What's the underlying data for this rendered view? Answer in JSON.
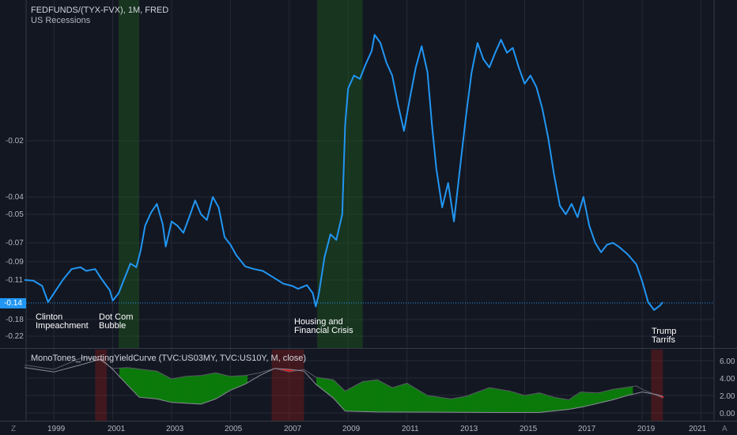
{
  "header": {
    "symbol": "FEDFUNDS/(TYX-FVX), 1M, FRED",
    "indicator": "US Recessions"
  },
  "lower_panel": {
    "title": "MonoTones_InvertingYieldCurve (TVC:US03MY, TVC:US10Y, M, close)"
  },
  "price_badge": "-0.14",
  "y_axis_labels": [
    "-0.02",
    "-0.04",
    "-0.05",
    "-0.07",
    "-0.09",
    "-0.11",
    "-0.18",
    "-0.22"
  ],
  "right_axis_labels": [
    "6.00",
    "4.00",
    "2.00",
    "0.00"
  ],
  "x_axis_labels": [
    "1999",
    "2001",
    "2003",
    "2005",
    "2007",
    "2009",
    "2011",
    "2013",
    "2015",
    "2017",
    "2019",
    "2021"
  ],
  "annotations": [
    {
      "line1": "Clinton",
      "line2": "Impeachment"
    },
    {
      "line1": "Dot Com",
      "line2": "Bubble"
    },
    {
      "line1": "Housing and",
      "line2": "Financial Crisis"
    },
    {
      "line1": "Trump",
      "line2": "Tarrifs"
    }
  ],
  "corner_buttons": {
    "left": "Z",
    "right": "A"
  },
  "colors": {
    "background": "#131722",
    "main_line": "#2196f3",
    "recession_band": "#1e5a1e",
    "spread_positive": "#0b7a0b",
    "spread_negative": "#e01414",
    "short_rate_line": "#8c8c9a",
    "long_rate_line": "#5a5a66"
  },
  "chart_data": [
    {
      "type": "line",
      "name": "FEDFUNDS/(TYX-FVX)",
      "recessions": [
        [
          2001.2,
          2001.9
        ],
        [
          2007.95,
          2009.5
        ]
      ],
      "points": [
        [
          1998.0,
          -0.11
        ],
        [
          1998.3,
          -0.111
        ],
        [
          1998.6,
          -0.118
        ],
        [
          1998.8,
          -0.14
        ],
        [
          1999.0,
          -0.128
        ],
        [
          1999.3,
          -0.11
        ],
        [
          1999.6,
          -0.098
        ],
        [
          1999.9,
          -0.096
        ],
        [
          2000.1,
          -0.1
        ],
        [
          2000.4,
          -0.098
        ],
        [
          2000.6,
          -0.108
        ],
        [
          2000.9,
          -0.124
        ],
        [
          2001.0,
          -0.138
        ],
        [
          2001.2,
          -0.128
        ],
        [
          2001.4,
          -0.108
        ],
        [
          2001.6,
          -0.092
        ],
        [
          2001.8,
          -0.096
        ],
        [
          2001.95,
          -0.078
        ],
        [
          2002.1,
          -0.058
        ],
        [
          2002.3,
          -0.049
        ],
        [
          2002.5,
          -0.044
        ],
        [
          2002.7,
          -0.057
        ],
        [
          2002.8,
          -0.074
        ],
        [
          2003.0,
          -0.055
        ],
        [
          2003.2,
          -0.058
        ],
        [
          2003.4,
          -0.063
        ],
        [
          2003.6,
          -0.052
        ],
        [
          2003.8,
          -0.042
        ],
        [
          2004.0,
          -0.05
        ],
        [
          2004.2,
          -0.054
        ],
        [
          2004.4,
          -0.04
        ],
        [
          2004.6,
          -0.046
        ],
        [
          2004.8,
          -0.066
        ],
        [
          2005.0,
          -0.072
        ],
        [
          2005.2,
          -0.083
        ],
        [
          2005.5,
          -0.095
        ],
        [
          2005.8,
          -0.098
        ],
        [
          2006.1,
          -0.1
        ],
        [
          2006.5,
          -0.108
        ],
        [
          2006.8,
          -0.115
        ],
        [
          2007.1,
          -0.118
        ],
        [
          2007.3,
          -0.122
        ],
        [
          2007.6,
          -0.117
        ],
        [
          2007.8,
          -0.128
        ],
        [
          2007.9,
          -0.15
        ],
        [
          2008.0,
          -0.13
        ],
        [
          2008.2,
          -0.085
        ],
        [
          2008.4,
          -0.064
        ],
        [
          2008.6,
          -0.068
        ],
        [
          2008.8,
          -0.05
        ],
        [
          2008.9,
          -0.01
        ],
        [
          2009.0,
          0.012
        ],
        [
          2009.2,
          0.02
        ],
        [
          2009.4,
          0.018
        ],
        [
          2009.6,
          0.027
        ],
        [
          2009.8,
          0.035
        ],
        [
          2009.9,
          0.045
        ],
        [
          2010.1,
          0.04
        ],
        [
          2010.3,
          0.028
        ],
        [
          2010.5,
          0.02
        ],
        [
          2010.7,
          0.002
        ],
        [
          2010.9,
          -0.014
        ],
        [
          2011.1,
          0.006
        ],
        [
          2011.3,
          0.025
        ],
        [
          2011.5,
          0.038
        ],
        [
          2011.7,
          0.022
        ],
        [
          2011.85,
          -0.01
        ],
        [
          2012.0,
          -0.03
        ],
        [
          2012.2,
          -0.046
        ],
        [
          2012.4,
          -0.035
        ],
        [
          2012.6,
          -0.055
        ],
        [
          2012.8,
          -0.03
        ],
        [
          2013.0,
          -0.006
        ],
        [
          2013.2,
          0.022
        ],
        [
          2013.4,
          0.04
        ],
        [
          2013.6,
          0.03
        ],
        [
          2013.8,
          0.025
        ],
        [
          2014.0,
          0.034
        ],
        [
          2014.2,
          0.042
        ],
        [
          2014.4,
          0.034
        ],
        [
          2014.6,
          0.037
        ],
        [
          2014.8,
          0.025
        ],
        [
          2015.0,
          0.015
        ],
        [
          2015.2,
          0.02
        ],
        [
          2015.4,
          0.013
        ],
        [
          2015.6,
          0.0
        ],
        [
          2015.8,
          -0.018
        ],
        [
          2016.0,
          -0.032
        ],
        [
          2016.2,
          -0.045
        ],
        [
          2016.4,
          -0.05
        ],
        [
          2016.6,
          -0.044
        ],
        [
          2016.8,
          -0.052
        ],
        [
          2017.0,
          -0.04
        ],
        [
          2017.2,
          -0.058
        ],
        [
          2017.4,
          -0.07
        ],
        [
          2017.6,
          -0.08
        ],
        [
          2017.8,
          -0.072
        ],
        [
          2018.0,
          -0.07
        ],
        [
          2018.2,
          -0.074
        ],
        [
          2018.5,
          -0.082
        ],
        [
          2018.8,
          -0.093
        ],
        [
          2019.0,
          -0.112
        ],
        [
          2019.2,
          -0.14
        ],
        [
          2019.4,
          -0.158
        ],
        [
          2019.6,
          -0.148
        ],
        [
          2019.7,
          -0.14
        ]
      ],
      "ylim": [
        -0.22,
        0.05
      ],
      "xlim": [
        1998.0,
        2021.0
      ]
    },
    {
      "type": "area",
      "name": "MonoTones_InvertingYieldCurve",
      "recessions": [
        [
          2000.4,
          2000.8
        ],
        [
          2006.4,
          2007.5
        ],
        [
          2019.3,
          2019.7
        ]
      ],
      "short_rate": [
        [
          1998.0,
          5.2
        ],
        [
          1999.0,
          4.7
        ],
        [
          2000.0,
          5.6
        ],
        [
          2000.6,
          6.2
        ],
        [
          2001.0,
          5.0
        ],
        [
          2001.5,
          3.2
        ],
        [
          2001.9,
          1.8
        ],
        [
          2002.5,
          1.6
        ],
        [
          2003.0,
          1.2
        ],
        [
          2004.0,
          1.0
        ],
        [
          2004.5,
          1.6
        ],
        [
          2005.0,
          2.6
        ],
        [
          2005.5,
          3.3
        ],
        [
          2006.0,
          4.3
        ],
        [
          2006.5,
          5.1
        ],
        [
          2007.0,
          5.0
        ],
        [
          2007.5,
          4.8
        ],
        [
          2007.9,
          3.3
        ],
        [
          2008.5,
          1.7
        ],
        [
          2008.9,
          0.2
        ],
        [
          2010.0,
          0.1
        ],
        [
          2012.0,
          0.08
        ],
        [
          2014.0,
          0.05
        ],
        [
          2015.5,
          0.05
        ],
        [
          2016.5,
          0.4
        ],
        [
          2017.0,
          0.7
        ],
        [
          2017.5,
          1.1
        ],
        [
          2018.0,
          1.5
        ],
        [
          2018.5,
          2.0
        ],
        [
          2019.0,
          2.4
        ],
        [
          2019.5,
          2.1
        ],
        [
          2019.7,
          1.9
        ]
      ],
      "long_rate": [
        [
          1998.0,
          5.5
        ],
        [
          1999.0,
          5.0
        ],
        [
          1999.7,
          6.0
        ],
        [
          2000.0,
          6.4
        ],
        [
          2000.6,
          6.0
        ],
        [
          2001.0,
          5.1
        ],
        [
          2001.5,
          5.2
        ],
        [
          2002.0,
          5.0
        ],
        [
          2002.5,
          4.8
        ],
        [
          2003.0,
          3.9
        ],
        [
          2003.5,
          4.2
        ],
        [
          2004.0,
          4.3
        ],
        [
          2004.5,
          4.6
        ],
        [
          2005.0,
          4.2
        ],
        [
          2005.5,
          4.3
        ],
        [
          2006.0,
          4.6
        ],
        [
          2006.5,
          5.1
        ],
        [
          2007.0,
          4.7
        ],
        [
          2007.5,
          5.0
        ],
        [
          2007.9,
          4.1
        ],
        [
          2008.5,
          3.8
        ],
        [
          2008.9,
          2.5
        ],
        [
          2009.5,
          3.6
        ],
        [
          2010.0,
          3.8
        ],
        [
          2010.5,
          2.9
        ],
        [
          2011.0,
          3.4
        ],
        [
          2011.7,
          2.0
        ],
        [
          2012.5,
          1.6
        ],
        [
          2013.0,
          1.9
        ],
        [
          2013.8,
          2.9
        ],
        [
          2014.5,
          2.5
        ],
        [
          2015.0,
          2.0
        ],
        [
          2015.5,
          2.3
        ],
        [
          2016.0,
          1.8
        ],
        [
          2016.5,
          1.5
        ],
        [
          2016.9,
          2.4
        ],
        [
          2017.5,
          2.3
        ],
        [
          2018.0,
          2.7
        ],
        [
          2018.8,
          3.1
        ],
        [
          2019.0,
          2.7
        ],
        [
          2019.5,
          2.0
        ],
        [
          2019.7,
          1.7
        ]
      ],
      "ylim": [
        -0.5,
        6.8
      ],
      "xlim": [
        1998.0,
        2021.0
      ]
    }
  ]
}
